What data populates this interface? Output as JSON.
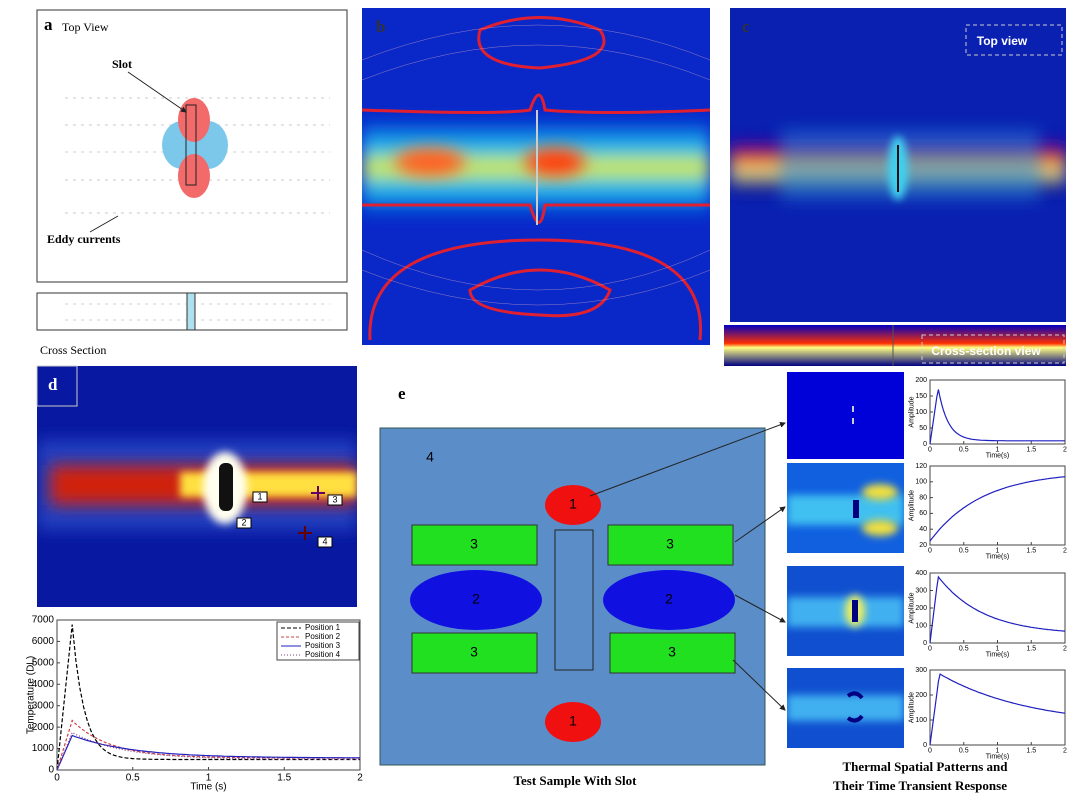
{
  "panel_a": {
    "label": "a",
    "title": "Top View",
    "slot": "Slot",
    "eddy": "Eddy currents",
    "cross_section": "Cross Section"
  },
  "panel_b": {
    "label": "b"
  },
  "panel_c": {
    "label": "c",
    "top_view": "Top view",
    "cross_view": "Cross-section view"
  },
  "panel_d": {
    "label": "d",
    "markers": [
      "1",
      "2",
      "3",
      "4"
    ]
  },
  "plot_f": {
    "ylabel": "Temperature (DL)",
    "xlabel": "Time (s)",
    "yticks": [
      0,
      1000,
      2000,
      3000,
      4000,
      5000,
      6000,
      7000
    ],
    "xticks": [
      0,
      0.5,
      1,
      1.5,
      2
    ],
    "legend": [
      "Position 1",
      "Position 2",
      "Position 3",
      "Position 4"
    ]
  },
  "panel_e": {
    "label": "e",
    "regions": [
      "4",
      "1",
      "3",
      "3",
      "2",
      "2",
      "3",
      "3",
      "1"
    ],
    "caption": "Test Sample With Slot",
    "right_caption": [
      "Thermal Spatial Patterns and",
      "Their Time Transient Response"
    ],
    "plots": [
      {
        "ylabel": "Amplitude",
        "xlabel": "Time(s)",
        "yticks": [
          0,
          50,
          100,
          150,
          200
        ],
        "xticks": [
          0,
          0.5,
          1,
          1.5,
          2
        ]
      },
      {
        "ylabel": "Amplitude",
        "xlabel": "Time(s)",
        "yticks": [
          20,
          40,
          60,
          80,
          100,
          120
        ],
        "xticks": [
          0,
          0.5,
          1,
          1.5,
          2
        ]
      },
      {
        "ylabel": "Amplitude",
        "xlabel": "Time(s)",
        "yticks": [
          0,
          100,
          200,
          300,
          400
        ],
        "xticks": [
          0,
          0.5,
          1,
          1.5,
          2
        ]
      },
      {
        "ylabel": "Amplitude",
        "xlabel": "Time(s)",
        "yticks": [
          0,
          100,
          200,
          300
        ],
        "xticks": [
          0,
          0.5,
          1,
          1.5,
          2
        ]
      }
    ]
  }
}
